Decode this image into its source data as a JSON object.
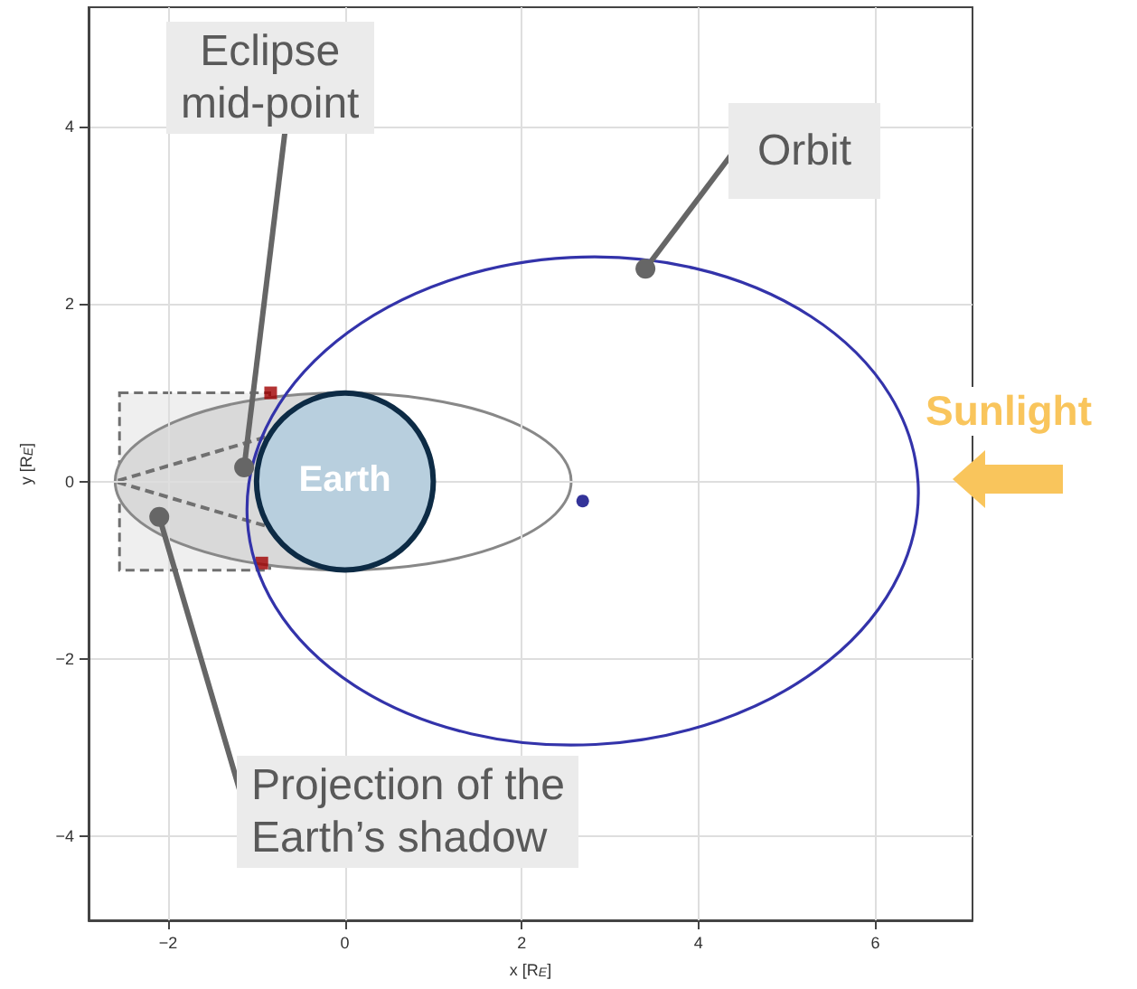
{
  "chart_data": {
    "type": "scatter",
    "xlabel": "x [R$_{E}$]",
    "ylabel": "y [R$_{E}$]",
    "xlim": [
      -2.9,
      7.1
    ],
    "ylim": [
      -4.95,
      5.35
    ],
    "xticks": [
      -2,
      0,
      2,
      4,
      6
    ],
    "yticks": [
      -4,
      -2,
      0,
      2,
      4
    ],
    "grid": true,
    "series": [
      {
        "marker": "square",
        "color": "#a00000",
        "x": [
          -0.84,
          -0.94
        ],
        "values": [
          1.0,
          -0.92
        ]
      },
      {
        "marker": "circle",
        "color": "#000080",
        "x": [
          2.69
        ],
        "values": [
          -0.22
        ]
      }
    ],
    "annotations": [
      {
        "text": "Eclipse\nmid-point",
        "x": -1.14,
        "y": 0.16
      },
      {
        "text": "Projection of the\nEarth’s shadow",
        "x": -2.1,
        "y": -0.4
      },
      {
        "text": "Orbit",
        "x": 3.4,
        "y": 2.4
      },
      "Sunlight",
      "Earth"
    ]
  }
}
